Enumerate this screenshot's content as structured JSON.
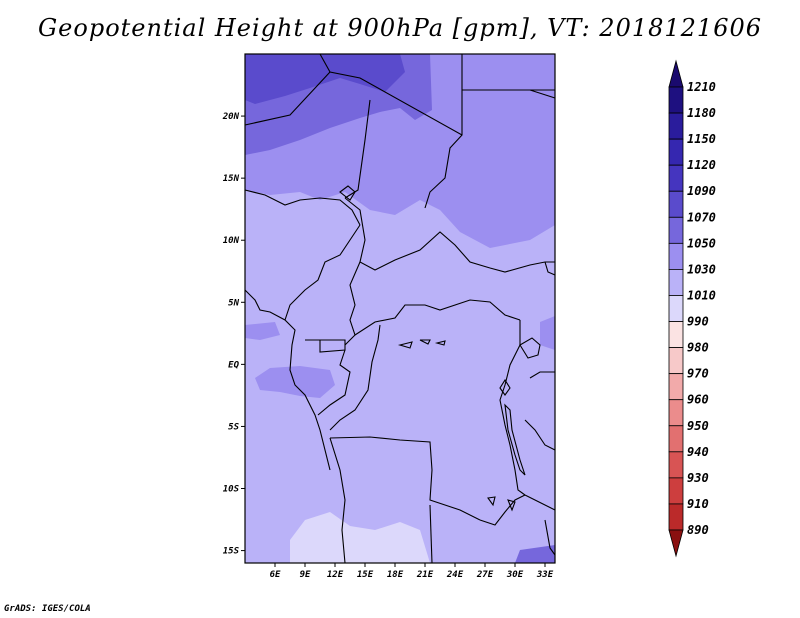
{
  "title": "Geopotential Height at 900hPa [gpm], VT: 2018121606",
  "credit": "GrADS: IGES/COLA",
  "map": {
    "lon_range": [
      3,
      34
    ],
    "lat_range": [
      -16,
      25
    ],
    "lon_ticks": [
      {
        "value": 6,
        "label": "6E"
      },
      {
        "value": 9,
        "label": "9E"
      },
      {
        "value": 12,
        "label": "12E"
      },
      {
        "value": 15,
        "label": "15E"
      },
      {
        "value": 18,
        "label": "18E"
      },
      {
        "value": 21,
        "label": "21E"
      },
      {
        "value": 24,
        "label": "24E"
      },
      {
        "value": 27,
        "label": "27E"
      },
      {
        "value": 30,
        "label": "30E"
      },
      {
        "value": 33,
        "label": "33E"
      }
    ],
    "lat_ticks": [
      {
        "value": 20,
        "label": "20N"
      },
      {
        "value": 15,
        "label": "15N"
      },
      {
        "value": 10,
        "label": "10N"
      },
      {
        "value": 5,
        "label": "5N"
      },
      {
        "value": 0,
        "label": "EQ"
      },
      {
        "value": -5,
        "label": "5S"
      },
      {
        "value": -10,
        "label": "10S"
      },
      {
        "value": -15,
        "label": "15S"
      }
    ]
  },
  "colorbar": {
    "levels": [
      {
        "label": "1210",
        "color": "#1e1080"
      },
      {
        "label": "1180",
        "color": "#2a1c9c"
      },
      {
        "label": "1150",
        "color": "#3527b0"
      },
      {
        "label": "1120",
        "color": "#4535bf"
      },
      {
        "label": "1090",
        "color": "#5a4bcc"
      },
      {
        "label": "1070",
        "color": "#7667dc"
      },
      {
        "label": "1050",
        "color": "#9c8ff0"
      },
      {
        "label": "1030",
        "color": "#bab2f8"
      },
      {
        "label": "1010",
        "color": "#dcd8fb"
      },
      {
        "label": "990",
        "color": "#fbe3e3"
      },
      {
        "label": "980",
        "color": "#f7c9c9"
      },
      {
        "label": "970",
        "color": "#f2aaaa"
      },
      {
        "label": "960",
        "color": "#eb8c8c"
      },
      {
        "label": "950",
        "color": "#e27070"
      },
      {
        "label": "940",
        "color": "#d85454"
      },
      {
        "label": "930",
        "color": "#cd3e3e"
      },
      {
        "label": "910",
        "color": "#bb2a2a"
      },
      {
        "label": "890",
        "color": "#9e1a1a"
      }
    ],
    "top_arrow_color": "#1a0a6e",
    "bottom_arrow_color": "#8a1010"
  }
}
